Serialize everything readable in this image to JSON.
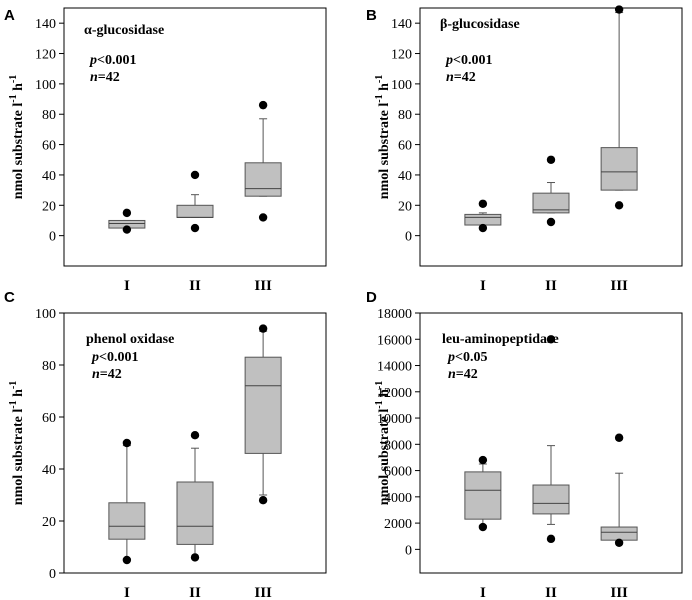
{
  "chart_data": [
    {
      "type": "box",
      "panel": "A",
      "title": "α-glucosidase",
      "ylabel": "nmol substrate l-1 h-1",
      "ylabel_parts": {
        "base": "nmol substrate l",
        "exp1": "-1",
        "mid": " h",
        "exp2": "-1"
      },
      "stat_p": "p<0.001",
      "stat_n": "n=42",
      "ylim": [
        -20,
        150
      ],
      "yticks": [
        0,
        20,
        40,
        60,
        80,
        100,
        120,
        140
      ],
      "categories": [
        "I",
        "II",
        "III"
      ],
      "boxes": [
        {
          "q1": 5,
          "median": 8,
          "q3": 10,
          "whisker_low": 5,
          "whisker_high": 10,
          "outliers": [
            15,
            4
          ]
        },
        {
          "q1": 12,
          "median": 12,
          "q3": 20,
          "whisker_low": 12,
          "whisker_high": 27,
          "outliers": [
            40,
            5
          ]
        },
        {
          "q1": 26,
          "median": 31,
          "q3": 48,
          "whisker_low": 26,
          "whisker_high": 77,
          "outliers": [
            86,
            12
          ]
        }
      ]
    },
    {
      "type": "box",
      "panel": "B",
      "title": "β-glucosidase",
      "ylabel": "nmol substrate l-1 h-1",
      "ylabel_parts": {
        "base": "nmol substrate l",
        "exp1": "-1",
        "mid": " h",
        "exp2": "-1"
      },
      "stat_p": "p<0.001",
      "stat_n": "n=42",
      "ylim": [
        -20,
        150
      ],
      "yticks": [
        0,
        20,
        40,
        60,
        80,
        100,
        120,
        140
      ],
      "categories": [
        "I",
        "II",
        "III"
      ],
      "boxes": [
        {
          "q1": 7,
          "median": 12,
          "q3": 14,
          "whisker_low": 7,
          "whisker_high": 15,
          "outliers": [
            21,
            5
          ]
        },
        {
          "q1": 15,
          "median": 17,
          "q3": 28,
          "whisker_low": 15,
          "whisker_high": 35,
          "outliers": [
            50,
            9
          ]
        },
        {
          "q1": 30,
          "median": 42,
          "q3": 58,
          "whisker_low": 30,
          "whisker_high": 147,
          "outliers": [
            149,
            20
          ]
        }
      ]
    },
    {
      "type": "box",
      "panel": "C",
      "title": "phenol oxidase",
      "ylabel": "nmol substrate l-1 h-1",
      "ylabel_parts": {
        "base": "nmol substrate l",
        "exp1": "-1",
        "mid": " h",
        "exp2": "-1"
      },
      "stat_p": "p<0.001",
      "stat_n": "n=42",
      "ylim": [
        0,
        100
      ],
      "yticks": [
        0,
        20,
        40,
        60,
        80,
        100
      ],
      "categories": [
        "I",
        "II",
        "III"
      ],
      "boxes": [
        {
          "q1": 13,
          "median": 18,
          "q3": 27,
          "whisker_low": 5,
          "whisker_high": 49,
          "outliers": [
            50,
            5
          ]
        },
        {
          "q1": 11,
          "median": 18,
          "q3": 35,
          "whisker_low": 6,
          "whisker_high": 48,
          "outliers": [
            53,
            6
          ]
        },
        {
          "q1": 46,
          "median": 72,
          "q3": 83,
          "whisker_low": 30,
          "whisker_high": 93,
          "outliers": [
            94,
            28
          ]
        }
      ]
    },
    {
      "type": "box",
      "panel": "D",
      "title": "leu-aminopeptidase",
      "ylabel": "nmol substrate l-1 h-1",
      "ylabel_parts": {
        "base": "nmol substrate l",
        "exp1": "-1",
        "mid": " h",
        "exp2": "-1"
      },
      "stat_p": "p<0.05",
      "stat_n": "n=42",
      "ylim": [
        -1800,
        18000
      ],
      "yticks": [
        0,
        2000,
        4000,
        6000,
        8000,
        10000,
        12000,
        14000,
        16000,
        18000
      ],
      "categories": [
        "I",
        "II",
        "III"
      ],
      "boxes": [
        {
          "q1": 2300,
          "median": 4500,
          "q3": 5900,
          "whisker_low": 1800,
          "whisker_high": 6500,
          "outliers": [
            6800,
            1700
          ]
        },
        {
          "q1": 2700,
          "median": 3500,
          "q3": 4900,
          "whisker_low": 1900,
          "whisker_high": 7900,
          "outliers": [
            16000,
            800
          ]
        },
        {
          "q1": 700,
          "median": 1300,
          "q3": 1700,
          "whisker_low": 600,
          "whisker_high": 5800,
          "outliers": [
            8500,
            500
          ]
        }
      ]
    }
  ]
}
